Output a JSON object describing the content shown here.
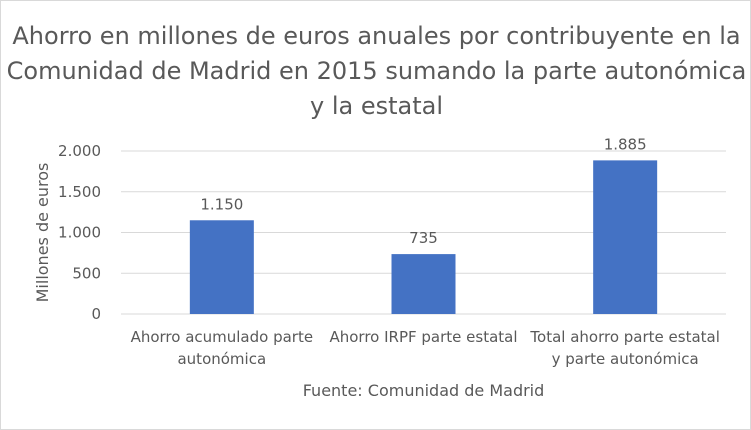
{
  "chart_data": {
    "type": "bar",
    "title": "Ahorro en millones de euros anuales por contribuyente en la Comunidad de Madrid en 2015 sumando la parte autonómica y la estatal",
    "categories": [
      [
        "Ahorro acumulado parte",
        "autonómica"
      ],
      [
        "Ahorro IRPF parte estatal"
      ],
      [
        "Total ahorro parte estatal",
        "y parte autonómica"
      ]
    ],
    "values": [
      1150,
      735,
      1885
    ],
    "data_labels": [
      "1.150",
      "735",
      "1.885"
    ],
    "ylabel": "Millones de euros",
    "xlabel": "Fuente: Comunidad de Madrid",
    "ylim": [
      0,
      2000
    ],
    "yticks": [
      0,
      500,
      1000,
      1500,
      2000
    ],
    "ytick_labels": [
      "0",
      "500",
      "1.000",
      "1.500",
      "2.000"
    ],
    "grid": true,
    "bar_color": "#4472C4"
  }
}
